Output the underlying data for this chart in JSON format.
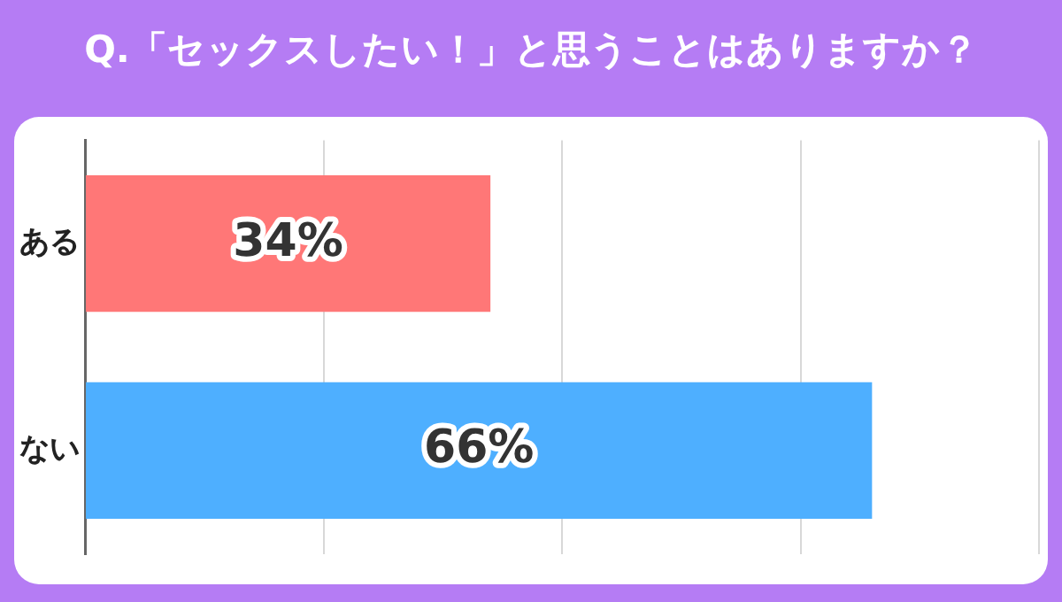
{
  "chart_data": {
    "type": "bar",
    "orientation": "horizontal",
    "title": "Q.「セックスしたい！」と思うことはありますか？",
    "categories": [
      "ある",
      "ない"
    ],
    "values": [
      34,
      66
    ],
    "colors": [
      "#ff7777",
      "#4eafff"
    ],
    "value_labels": [
      "34%",
      "66%"
    ],
    "xlim": [
      0,
      80
    ],
    "xticks": [
      {
        "value": 0,
        "label": null
      },
      {
        "value": 20,
        "label": null
      },
      {
        "value": 40,
        "label": null
      },
      {
        "value": 60,
        "label": null
      },
      {
        "value": 80,
        "label": null
      }
    ],
    "grid": "x",
    "tick_labels": "y",
    "legend": false
  }
}
